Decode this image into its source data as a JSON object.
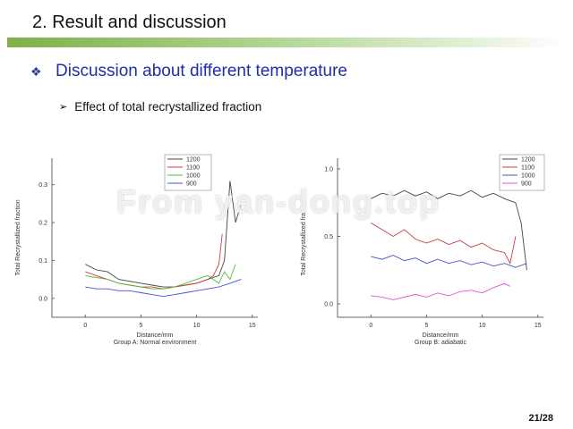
{
  "slide": {
    "title": "2. Result and discussion",
    "bullet": "Discussion about different temperature",
    "sub_bullet": "Effect of total recrystallized fraction",
    "watermark": "From yan-dong.top",
    "page": "21/28"
  },
  "icons": {
    "bullet": "diamond-bullet-icon",
    "sub_bullet": "arrow-bullet-icon"
  },
  "colors": {
    "title_accent": "#7fb04a",
    "bullet_text": "#1f2fa8"
  },
  "chart_data": [
    {
      "type": "line",
      "xlabel": "Distance/mm",
      "caption": "Group A: Normal environment",
      "ylabel": "Total Recrystallized fraction",
      "xlim": [
        -3,
        15.5
      ],
      "ylim": [
        -0.05,
        0.37
      ],
      "xticks": [
        0,
        5,
        10,
        15
      ],
      "yticks": [
        0.0,
        0.1,
        0.2,
        0.3
      ],
      "xtick_labels": [
        "0",
        "5",
        "10",
        "15"
      ],
      "ytick_labels": [
        "0.0",
        "0.1",
        "0.2",
        "0.3"
      ],
      "legend_position": "top-center",
      "series": [
        {
          "name": "1200",
          "color": "#444444",
          "points": [
            [
              0,
              0.09
            ],
            [
              1,
              0.075
            ],
            [
              2,
              0.07
            ],
            [
              3,
              0.05
            ],
            [
              4,
              0.045
            ],
            [
              5,
              0.04
            ],
            [
              6,
              0.035
            ],
            [
              7,
              0.03
            ],
            [
              8,
              0.03
            ],
            [
              9,
              0.035
            ],
            [
              10,
              0.04
            ],
            [
              11,
              0.05
            ],
            [
              12,
              0.06
            ],
            [
              12.5,
              0.1
            ],
            [
              13,
              0.31
            ],
            [
              13.5,
              0.2
            ],
            [
              14,
              0.25
            ]
          ]
        },
        {
          "name": "1100",
          "color": "#d03a3a",
          "points": [
            [
              0,
              0.07
            ],
            [
              1,
              0.06
            ],
            [
              2,
              0.05
            ],
            [
              3,
              0.04
            ],
            [
              4,
              0.035
            ],
            [
              5,
              0.03
            ],
            [
              6,
              0.03
            ],
            [
              7,
              0.025
            ],
            [
              8,
              0.03
            ],
            [
              9,
              0.035
            ],
            [
              10,
              0.04
            ],
            [
              11,
              0.05
            ],
            [
              11.5,
              0.06
            ],
            [
              12,
              0.09
            ],
            [
              12.3,
              0.17
            ]
          ]
        },
        {
          "name": "1000",
          "color": "#4bbf3c",
          "points": [
            [
              0,
              0.06
            ],
            [
              1,
              0.055
            ],
            [
              2,
              0.05
            ],
            [
              3,
              0.04
            ],
            [
              4,
              0.035
            ],
            [
              5,
              0.03
            ],
            [
              6,
              0.025
            ],
            [
              7,
              0.025
            ],
            [
              8,
              0.03
            ],
            [
              9,
              0.04
            ],
            [
              10,
              0.05
            ],
            [
              11,
              0.06
            ],
            [
              12,
              0.04
            ],
            [
              12.5,
              0.07
            ],
            [
              13,
              0.05
            ],
            [
              13.5,
              0.09
            ]
          ]
        },
        {
          "name": "900",
          "color": "#4455cc",
          "points": [
            [
              0,
              0.03
            ],
            [
              1,
              0.025
            ],
            [
              2,
              0.025
            ],
            [
              3,
              0.02
            ],
            [
              4,
              0.02
            ],
            [
              5,
              0.015
            ],
            [
              6,
              0.01
            ],
            [
              7,
              0.005
            ],
            [
              8,
              0.01
            ],
            [
              9,
              0.015
            ],
            [
              10,
              0.02
            ],
            [
              11,
              0.025
            ],
            [
              12,
              0.03
            ],
            [
              13,
              0.04
            ],
            [
              14,
              0.05
            ]
          ]
        }
      ]
    },
    {
      "type": "line",
      "xlabel": "Distance/mm",
      "caption": "Group B: adiabatic",
      "ylabel": "Total Recrystallized fraction",
      "xlim": [
        -3,
        15.5
      ],
      "ylim": [
        -0.1,
        1.08
      ],
      "xticks": [
        0,
        5,
        10,
        15
      ],
      "yticks": [
        0.0,
        0.5,
        1.0
      ],
      "xtick_labels": [
        "0",
        "5",
        "10",
        "15"
      ],
      "ytick_labels": [
        "0.0",
        "0.5",
        "1.0"
      ],
      "legend_position": "top-right",
      "series": [
        {
          "name": "1200",
          "color": "#444444",
          "points": [
            [
              0,
              0.78
            ],
            [
              1,
              0.82
            ],
            [
              2,
              0.8
            ],
            [
              3,
              0.84
            ],
            [
              4,
              0.8
            ],
            [
              5,
              0.83
            ],
            [
              6,
              0.78
            ],
            [
              7,
              0.82
            ],
            [
              8,
              0.8
            ],
            [
              9,
              0.84
            ],
            [
              10,
              0.79
            ],
            [
              11,
              0.82
            ],
            [
              12,
              0.78
            ],
            [
              13,
              0.75
            ],
            [
              13.5,
              0.6
            ],
            [
              14,
              0.25
            ]
          ]
        },
        {
          "name": "1100",
          "color": "#d03a3a",
          "points": [
            [
              0,
              0.6
            ],
            [
              1,
              0.55
            ],
            [
              2,
              0.5
            ],
            [
              3,
              0.55
            ],
            [
              4,
              0.48
            ],
            [
              5,
              0.45
            ],
            [
              6,
              0.48
            ],
            [
              7,
              0.44
            ],
            [
              8,
              0.47
            ],
            [
              9,
              0.42
            ],
            [
              10,
              0.45
            ],
            [
              11,
              0.4
            ],
            [
              12,
              0.38
            ],
            [
              12.5,
              0.3
            ],
            [
              13,
              0.5
            ]
          ]
        },
        {
          "name": "1000",
          "color": "#4455cc",
          "points": [
            [
              0,
              0.35
            ],
            [
              1,
              0.33
            ],
            [
              2,
              0.36
            ],
            [
              3,
              0.32
            ],
            [
              4,
              0.34
            ],
            [
              5,
              0.3
            ],
            [
              6,
              0.33
            ],
            [
              7,
              0.3
            ],
            [
              8,
              0.32
            ],
            [
              9,
              0.29
            ],
            [
              10,
              0.31
            ],
            [
              11,
              0.28
            ],
            [
              12,
              0.3
            ],
            [
              13,
              0.27
            ],
            [
              14,
              0.3
            ]
          ]
        },
        {
          "name": "900",
          "color": "#e050d8",
          "points": [
            [
              0,
              0.06
            ],
            [
              1,
              0.05
            ],
            [
              2,
              0.03
            ],
            [
              3,
              0.05
            ],
            [
              4,
              0.07
            ],
            [
              5,
              0.05
            ],
            [
              6,
              0.08
            ],
            [
              7,
              0.06
            ],
            [
              8,
              0.09
            ],
            [
              9,
              0.1
            ],
            [
              10,
              0.08
            ],
            [
              11,
              0.12
            ],
            [
              12,
              0.15
            ],
            [
              12.5,
              0.13
            ]
          ]
        }
      ]
    }
  ]
}
